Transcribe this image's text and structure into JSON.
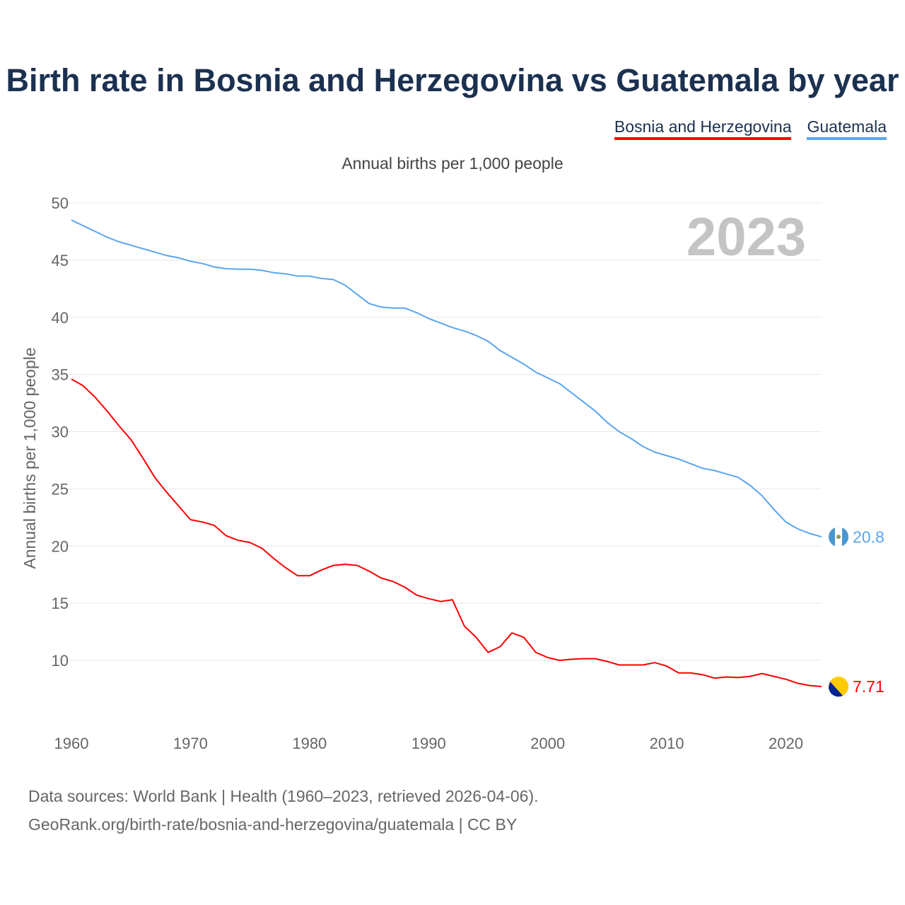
{
  "title": "Birth rate in Bosnia and Herzegovina vs Guatemala by year",
  "legend": [
    {
      "label": "Bosnia and Herzegovina",
      "color": "#ff0000"
    },
    {
      "label": "Guatemala",
      "color": "#5aa5ee"
    }
  ],
  "subtitle": "Annual births per 1,000 people",
  "year_watermark": "2023",
  "footer": {
    "line1": "Data sources: World Bank | Health (1960–2023, retrieved 2026-04-06).",
    "line2": "GeoRank.org/birth-rate/bosnia-and-herzegovina/guatemala | CC BY"
  },
  "chart_data": {
    "type": "line",
    "title": "Birth rate in Bosnia and Herzegovina vs Guatemala by year",
    "xlabel": "",
    "ylabel": "Annual births per 1,000 people",
    "xlim": [
      1960,
      2023
    ],
    "ylim": [
      5,
      50
    ],
    "yticks": [
      10,
      15,
      20,
      25,
      30,
      35,
      40,
      45,
      50
    ],
    "xticks": [
      1960,
      1970,
      1980,
      1990,
      2000,
      2010,
      2020
    ],
    "grid": true,
    "legend_position": "top-right",
    "x": [
      1960,
      1961,
      1962,
      1963,
      1964,
      1965,
      1966,
      1967,
      1968,
      1969,
      1970,
      1971,
      1972,
      1973,
      1974,
      1975,
      1976,
      1977,
      1978,
      1979,
      1980,
      1981,
      1982,
      1983,
      1984,
      1985,
      1986,
      1987,
      1988,
      1989,
      1990,
      1991,
      1992,
      1993,
      1994,
      1995,
      1996,
      1997,
      1998,
      1999,
      2000,
      2001,
      2002,
      2003,
      2004,
      2005,
      2006,
      2007,
      2008,
      2009,
      2010,
      2011,
      2012,
      2013,
      2014,
      2015,
      2016,
      2017,
      2018,
      2019,
      2020,
      2021,
      2022,
      2023
    ],
    "series": [
      {
        "name": "Bosnia and Herzegovina",
        "color": "#ff0000",
        "end_label": "7.71",
        "values": [
          34.6,
          34.0,
          33.0,
          31.8,
          30.5,
          29.3,
          27.7,
          26.0,
          24.7,
          23.5,
          22.3,
          22.1,
          21.8,
          20.9,
          20.5,
          20.3,
          19.8,
          18.9,
          18.1,
          17.4,
          17.4,
          17.9,
          18.3,
          18.4,
          18.3,
          17.8,
          17.2,
          16.9,
          16.4,
          15.7,
          15.4,
          15.15,
          15.3,
          13.0,
          12.0,
          10.7,
          11.2,
          12.4,
          12.0,
          10.7,
          10.25,
          10.0,
          10.1,
          10.15,
          10.15,
          9.9,
          9.6,
          9.6,
          9.6,
          9.8,
          9.5,
          8.9,
          8.9,
          8.75,
          8.45,
          8.55,
          8.5,
          8.6,
          8.85,
          8.6,
          8.35,
          8.0,
          7.8,
          7.71
        ]
      },
      {
        "name": "Guatemala",
        "color": "#5aa5ee",
        "end_label": "20.8",
        "values": [
          48.5,
          48.0,
          47.5,
          47.0,
          46.6,
          46.3,
          46.0,
          45.7,
          45.4,
          45.2,
          44.9,
          44.7,
          44.4,
          44.25,
          44.2,
          44.2,
          44.1,
          43.9,
          43.8,
          43.6,
          43.6,
          43.4,
          43.3,
          42.8,
          42.0,
          41.2,
          40.9,
          40.8,
          40.8,
          40.4,
          39.9,
          39.5,
          39.1,
          38.8,
          38.4,
          37.9,
          37.1,
          36.5,
          35.9,
          35.2,
          34.7,
          34.2,
          33.4,
          32.6,
          31.8,
          30.8,
          30.0,
          29.4,
          28.7,
          28.2,
          27.9,
          27.6,
          27.2,
          26.8,
          26.6,
          26.3,
          26.0,
          25.3,
          24.4,
          23.2,
          22.1,
          21.5,
          21.1,
          20.8
        ]
      }
    ]
  }
}
